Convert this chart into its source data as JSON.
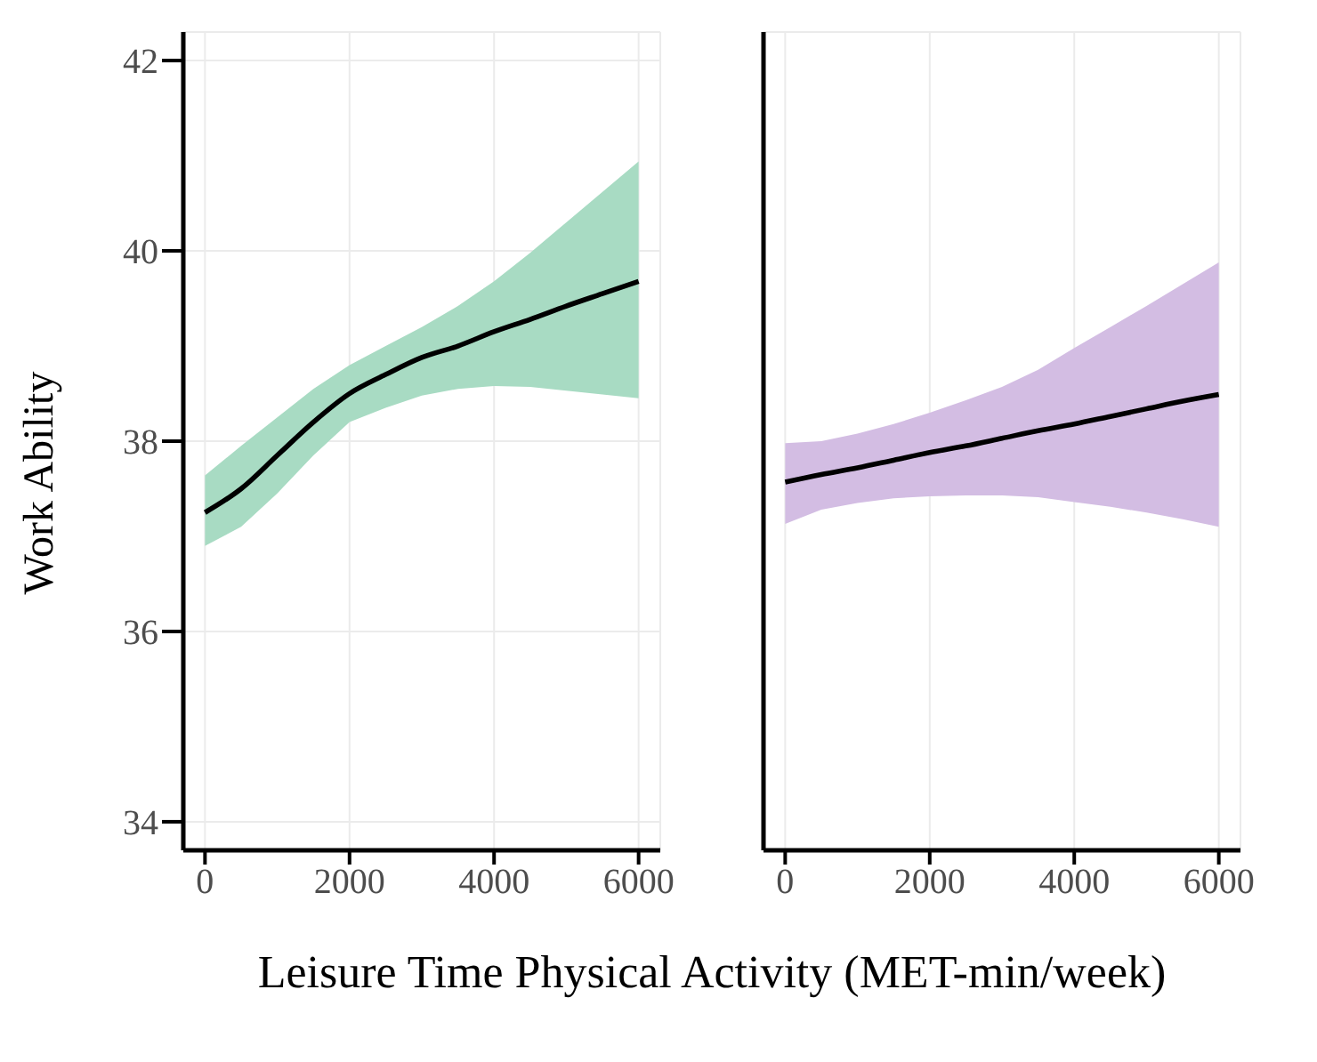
{
  "chart_data": [
    {
      "type": "line",
      "ylabel": "Work Ability",
      "xlabel": "Leisure Time Physical Activity  (MET-min/week)",
      "x": [
        0,
        500,
        1000,
        1500,
        2000,
        2500,
        3000,
        3500,
        4000,
        4500,
        5000,
        5500,
        6000
      ],
      "series": [
        {
          "color": "#000000",
          "values": [
            37.25,
            37.5,
            37.85,
            38.2,
            38.5,
            38.7,
            38.88,
            39.0,
            39.15,
            39.28,
            39.42,
            39.55,
            39.68
          ],
          "lower": [
            36.9,
            37.1,
            37.45,
            37.85,
            38.2,
            38.35,
            38.48,
            38.55,
            38.58,
            38.57,
            38.53,
            38.49,
            38.45
          ],
          "upper": [
            37.64,
            37.95,
            38.25,
            38.55,
            38.8,
            39.0,
            39.2,
            39.42,
            39.68,
            39.98,
            40.3,
            40.62,
            40.94
          ]
        }
      ],
      "colors": [
        "#a8dbc3"
      ],
      "xlim": [
        -300,
        6300
      ],
      "xticks": [
        0,
        2000,
        4000,
        6000
      ],
      "ylim": [
        33.7,
        42.3
      ],
      "yticks": [
        34,
        36,
        38,
        40,
        42
      ],
      "grid": true
    },
    {
      "type": "line",
      "x": [
        0,
        500,
        1000,
        1500,
        2000,
        2500,
        3000,
        3500,
        4000,
        4500,
        5000,
        5500,
        6000
      ],
      "series": [
        {
          "color": "#000000",
          "values": [
            37.57,
            37.65,
            37.72,
            37.8,
            37.88,
            37.95,
            38.03,
            38.11,
            38.18,
            38.26,
            38.34,
            38.42,
            38.49
          ],
          "lower": [
            37.13,
            37.28,
            37.35,
            37.4,
            37.42,
            37.43,
            37.43,
            37.41,
            37.36,
            37.31,
            37.25,
            37.18,
            37.1
          ],
          "upper": [
            37.98,
            38.0,
            38.08,
            38.18,
            38.3,
            38.43,
            38.57,
            38.75,
            38.98,
            39.2,
            39.42,
            39.65,
            39.88
          ]
        }
      ],
      "colors": [
        "#d3bde3"
      ],
      "xlim": [
        -300,
        6300
      ],
      "xticks": [
        0,
        2000,
        4000,
        6000
      ],
      "ylim": [
        33.7,
        42.3
      ],
      "yticks": [
        34,
        36,
        38,
        40,
        42
      ],
      "grid": true,
      "tick_labels": "x"
    }
  ]
}
